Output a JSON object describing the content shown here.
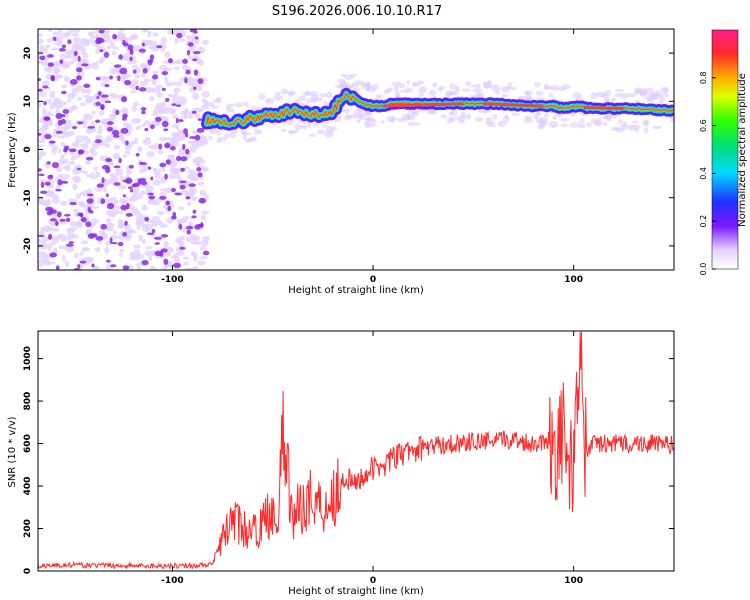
{
  "title": "S196.2026.006.10.10.R17",
  "colors": {
    "snr_line": "#ff2a2a",
    "signal_core": "#ff3b3b",
    "noise": "#8a2be2",
    "background": "#ffffff"
  },
  "chart_data": [
    {
      "type": "heatmap",
      "xlabel": "Height of straight line (km)",
      "ylabel": "Frequency (Hz)",
      "xlim": [
        -167,
        150
      ],
      "ylim": [
        -25,
        25
      ],
      "xticks": [
        -100,
        0,
        100
      ],
      "yticks": [
        -20,
        -10,
        0,
        10,
        20
      ],
      "noise_region_x": [
        -167,
        -83
      ],
      "signal_track": {
        "x": [
          -83,
          -75,
          -68,
          -60,
          -50,
          -45,
          -40,
          -32,
          -25,
          -20,
          -15,
          -10,
          -5,
          0,
          5,
          10,
          20,
          40,
          60,
          80,
          90,
          95,
          100,
          110,
          130,
          150
        ],
        "y": [
          6,
          6,
          5.5,
          6.5,
          7,
          7.5,
          8,
          7.5,
          7,
          8,
          11,
          11,
          9.5,
          9,
          9,
          9.5,
          9.5,
          9.5,
          9.5,
          9,
          9,
          8.5,
          9,
          8.5,
          8.5,
          8
        ]
      },
      "colorbar": {
        "label": "Normalized spectral amplitude",
        "range": [
          0,
          1
        ],
        "ticks": [
          0.0,
          0.2,
          0.4,
          0.6,
          0.8
        ],
        "tick_labels": [
          "0.0",
          "0.2",
          "0.4",
          "0.6",
          "0.8"
        ]
      },
      "tick_labels_x": [
        "-100",
        "0",
        "100"
      ],
      "tick_labels_y": [
        "-20",
        "-10",
        "0",
        "10",
        "20"
      ]
    },
    {
      "type": "line",
      "xlabel": "Height of straight line (km)",
      "ylabel": "SNR (10 * v/v)",
      "xlim": [
        -167,
        150
      ],
      "ylim": [
        0,
        1130
      ],
      "xticks": [
        -100,
        0,
        100
      ],
      "yticks": [
        0,
        200,
        400,
        600,
        800,
        1000
      ],
      "tick_labels_x": [
        "-100",
        "0",
        "100"
      ],
      "tick_labels_y": [
        "0",
        "200",
        "400",
        "600",
        "800",
        "1000"
      ],
      "series": [
        {
          "x": [
            -167,
            -150,
            -130,
            -110,
            -90,
            -80,
            -75,
            -70,
            -65,
            -60,
            -55,
            -50,
            -47,
            -45,
            -40,
            -35,
            -30,
            -25,
            -20,
            -14,
            -10,
            -5,
            0,
            5,
            10,
            15,
            20,
            25,
            30,
            40,
            50,
            60,
            70,
            80,
            88,
            92,
            95,
            98,
            100,
            102,
            104,
            105,
            110,
            120,
            130,
            140,
            150
          ],
          "y": [
            25,
            28,
            25,
            24,
            25,
            30,
            150,
            250,
            200,
            180,
            220,
            300,
            250,
            650,
            250,
            320,
            350,
            300,
            350,
            450,
            400,
            450,
            480,
            500,
            530,
            550,
            570,
            580,
            590,
            600,
            610,
            610,
            620,
            600,
            620,
            580,
            650,
            500,
            400,
            1000,
            950,
            550,
            600,
            600,
            600,
            600,
            590
          ]
        }
      ]
    }
  ]
}
